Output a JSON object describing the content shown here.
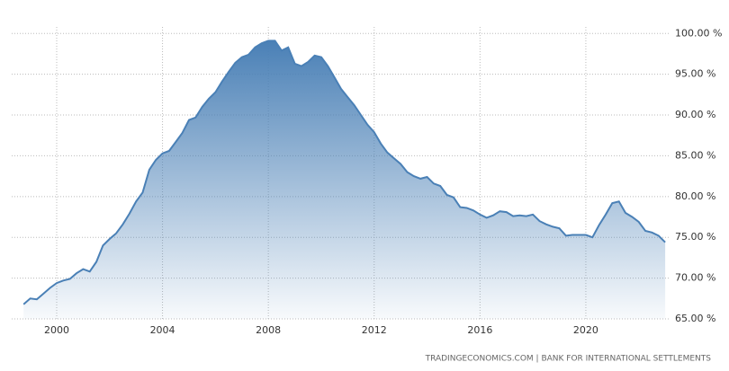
{
  "chart_data": {
    "type": "area",
    "source": "TRADINGECONOMICS.COM | BANK FOR INTERNATIONAL SETTLEMENTS",
    "color": "#4a80b6",
    "grid": true,
    "x": [
      1998.75,
      1999,
      1999.25,
      1999.5,
      1999.75,
      2000,
      2000.25,
      2000.5,
      2000.75,
      2001,
      2001.25,
      2001.5,
      2001.75,
      2002,
      2002.25,
      2002.5,
      2002.75,
      2003,
      2003.25,
      2003.5,
      2003.75,
      2004,
      2004.25,
      2004.5,
      2004.75,
      2005,
      2005.25,
      2005.5,
      2005.75,
      2006,
      2006.25,
      2006.5,
      2006.75,
      2007,
      2007.25,
      2007.5,
      2007.75,
      2008,
      2008.25,
      2008.5,
      2008.75,
      2009,
      2009.25,
      2009.5,
      2009.75,
      2010,
      2010.25,
      2010.5,
      2010.75,
      2011,
      2011.25,
      2011.5,
      2011.75,
      2012,
      2012.25,
      2012.5,
      2012.75,
      2013,
      2013.25,
      2013.5,
      2013.75,
      2014,
      2014.25,
      2014.5,
      2014.75,
      2015,
      2015.25,
      2015.5,
      2015.75,
      2016,
      2016.25,
      2016.5,
      2016.75,
      2017,
      2017.25,
      2017.5,
      2017.75,
      2018,
      2018.25,
      2018.5,
      2018.75,
      2019,
      2019.25,
      2019.5,
      2019.75,
      2020,
      2020.25,
      2020.5,
      2020.75,
      2021,
      2021.25,
      2021.5,
      2021.75,
      2022,
      2022.25,
      2022.5,
      2022.75,
      2023
    ],
    "values": [
      66.8,
      67.5,
      67.4,
      68.1,
      68.8,
      69.4,
      69.7,
      69.9,
      70.6,
      71.1,
      70.8,
      72.0,
      74.0,
      74.8,
      75.5,
      76.6,
      77.9,
      79.4,
      80.5,
      83.3,
      84.5,
      85.3,
      85.6,
      86.7,
      87.8,
      89.4,
      89.7,
      91.0,
      92.0,
      92.8,
      94.1,
      95.3,
      96.4,
      97.1,
      97.4,
      98.3,
      98.8,
      99.1,
      99.1,
      97.9,
      98.3,
      96.3,
      96.0,
      96.5,
      97.3,
      97.1,
      96.0,
      94.6,
      93.2,
      92.2,
      91.2,
      90.0,
      88.8,
      87.9,
      86.5,
      85.4,
      84.7,
      84.0,
      83.0,
      82.5,
      82.2,
      82.4,
      81.6,
      81.3,
      80.2,
      79.9,
      78.7,
      78.6,
      78.3,
      77.8,
      77.4,
      77.7,
      78.2,
      78.1,
      77.6,
      77.7,
      77.6,
      77.8,
      77.0,
      76.6,
      76.3,
      76.1,
      75.2,
      75.3,
      75.3,
      75.3,
      75.0,
      76.5,
      77.8,
      79.2,
      79.4,
      78.0,
      77.5,
      76.9,
      75.8,
      75.6,
      75.2,
      74.4
    ],
    "xlim": [
      1998.3,
      2023.2
    ],
    "xticks": [
      2000,
      2004,
      2008,
      2012,
      2016,
      2020
    ],
    "ylim": [
      65,
      100.8
    ],
    "yticks": [
      {
        "value": 65,
        "label": "65.00 %"
      },
      {
        "value": 70,
        "label": "70.00 %"
      },
      {
        "value": 75,
        "label": "75.00 %"
      },
      {
        "value": 80,
        "label": "80.00 %"
      },
      {
        "value": 85,
        "label": "85.00 %"
      },
      {
        "value": 90,
        "label": "90.00 %"
      },
      {
        "value": 95,
        "label": "95.00 %"
      },
      {
        "value": 100,
        "label": "100.00 %"
      }
    ]
  }
}
